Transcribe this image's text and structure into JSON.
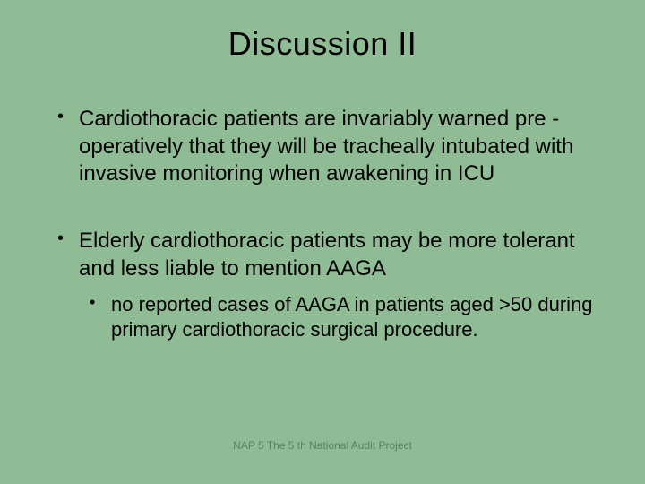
{
  "colors": {
    "background": "#8fbc94",
    "text": "#000000",
    "footer_text": "#5a8260"
  },
  "typography": {
    "title_fontsize": 36,
    "bullet_fontsize": 24,
    "sub_bullet_fontsize": 22,
    "footer_fontsize": 12,
    "font_family": "Arial"
  },
  "slide": {
    "title": "Discussion II",
    "bullets": [
      {
        "text": "Cardiothoracic patients are invariably warned pre -operatively that they will be tracheally intubated with invasive monitoring when awakening in ICU"
      },
      {
        "text": "Elderly cardiothoracic patients may be more tolerant and less liable to mention AAGA",
        "sub": [
          "no reported cases of AAGA in patients aged >50 during primary cardiothoracic surgical procedure."
        ]
      }
    ],
    "footer": "NAP 5 The 5 th National Audit Project"
  }
}
